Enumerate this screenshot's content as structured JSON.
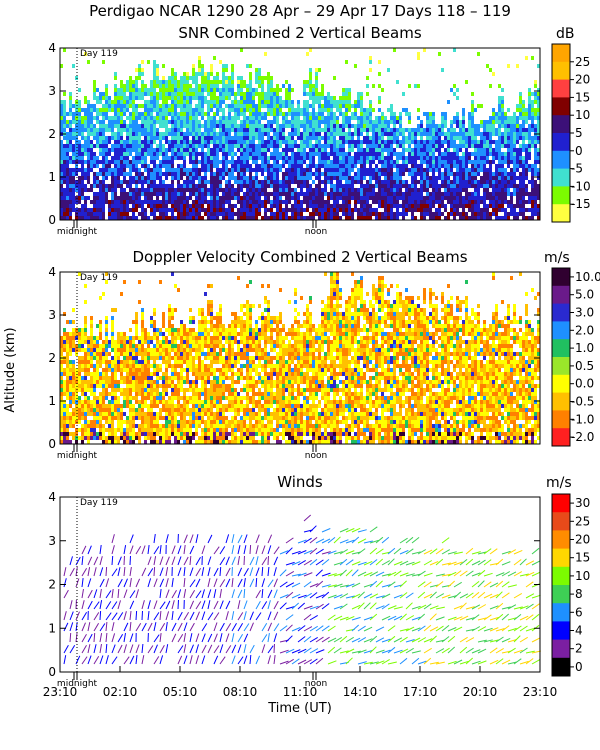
{
  "header": {
    "title": "Perdigao NCAR 1290  28 Apr – 29 Apr 17 Days 118 – 119"
  },
  "shared": {
    "day_marker": "Day 119",
    "midnight": "midnight",
    "noon": "noon",
    "y_axis_label": "Altitude (km)",
    "x_axis_label": "Time (UT)"
  },
  "chart_data": [
    {
      "type": "heatmap",
      "title": "SNR Combined 2 Vertical Beams",
      "unit": "dB",
      "ylim": [
        0,
        4
      ],
      "yticks": [
        "0",
        "1",
        "2",
        "3",
        "4"
      ],
      "colorbar": {
        "labels": [
          "25",
          "20",
          "15",
          "10",
          "5",
          "0",
          "-5",
          "-10",
          "-15"
        ],
        "colors": [
          "#ffa500",
          "#ffc000",
          "#ff4040",
          "#800000",
          "#3c1078",
          "#2020d0",
          "#1e90ff",
          "#40e0d0",
          "#7cfc00",
          "#ffff40"
        ]
      }
    },
    {
      "type": "heatmap",
      "title": "Doppler Velocity Combined 2 Vertical Beams",
      "unit": "m/s",
      "ylim": [
        0,
        4
      ],
      "yticks": [
        "0",
        "1",
        "2",
        "3",
        "4"
      ],
      "colorbar": {
        "labels": [
          "10.0",
          "5.0",
          "3.0",
          "2.0",
          "1.0",
          "0.5",
          "0.0",
          "-0.5",
          "-1.0",
          "-2.0"
        ],
        "colors": [
          "#300030",
          "#6a1a8a",
          "#2a2ad0",
          "#1e90ff",
          "#20c060",
          "#9ae62a",
          "#ffff00",
          "#ffc000",
          "#ff8000",
          "#ff2020"
        ]
      }
    },
    {
      "type": "scatter",
      "title": "Winds",
      "unit": "m/s",
      "ylim": [
        0,
        4
      ],
      "yticks": [
        "0",
        "1",
        "2",
        "3",
        "4"
      ],
      "x_ticks": [
        "23:10",
        "02:10",
        "05:10",
        "08:10",
        "11:10",
        "14:10",
        "17:10",
        "20:10",
        "23:10"
      ],
      "colorbar": {
        "labels": [
          "30",
          "25",
          "20",
          "15",
          "10",
          "8",
          "6",
          "4",
          "2",
          "0"
        ],
        "colors": [
          "#ff0000",
          "#e84a1a",
          "#ff8c00",
          "#ffd700",
          "#7cfc00",
          "#3ecf55",
          "#1e90ff",
          "#0000ff",
          "#7b1fa2",
          "#000000"
        ]
      }
    }
  ]
}
